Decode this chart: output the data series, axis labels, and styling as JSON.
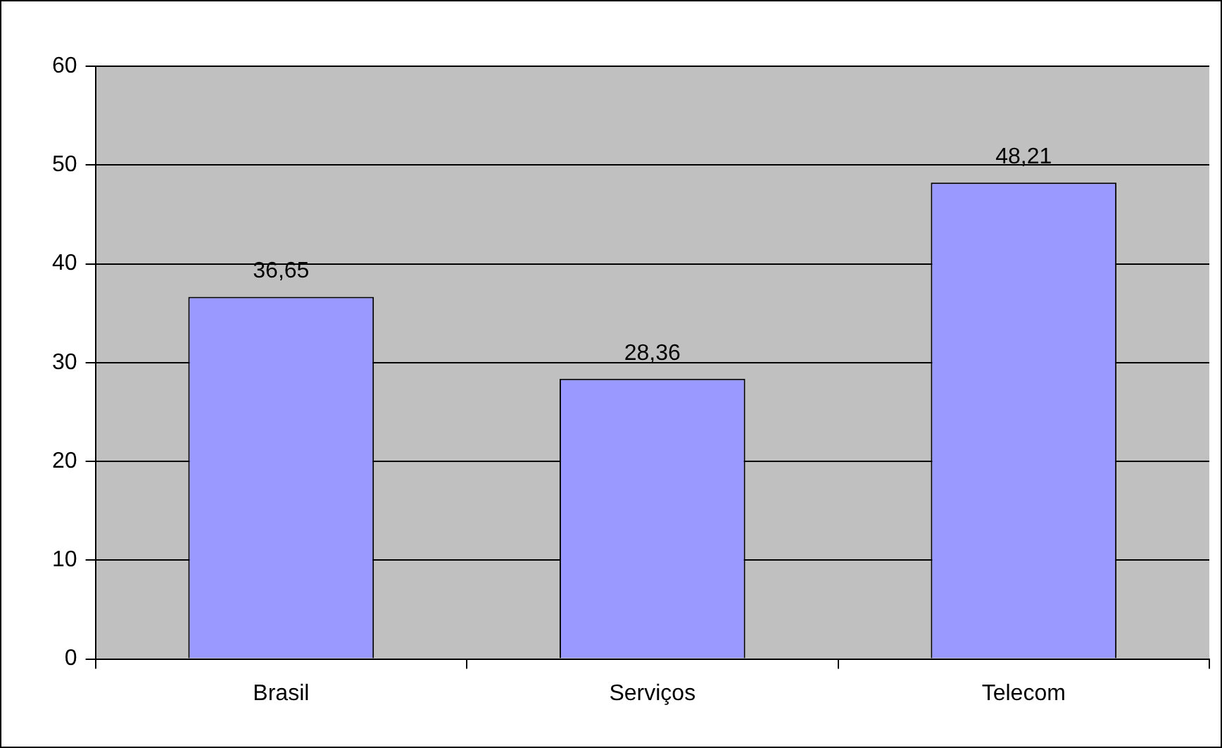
{
  "chart_data": {
    "type": "bar",
    "categories": [
      "Brasil",
      "Serviços",
      "Telecom"
    ],
    "values": [
      36.65,
      28.36,
      48.21
    ],
    "color": "#9999ff",
    "value_labels": [
      "36,65",
      "28,36",
      "48,21"
    ],
    "ylim": [
      0,
      60
    ],
    "yticks": [
      0,
      10,
      20,
      30,
      40,
      50,
      60
    ],
    "grid": "y",
    "legend": false
  }
}
